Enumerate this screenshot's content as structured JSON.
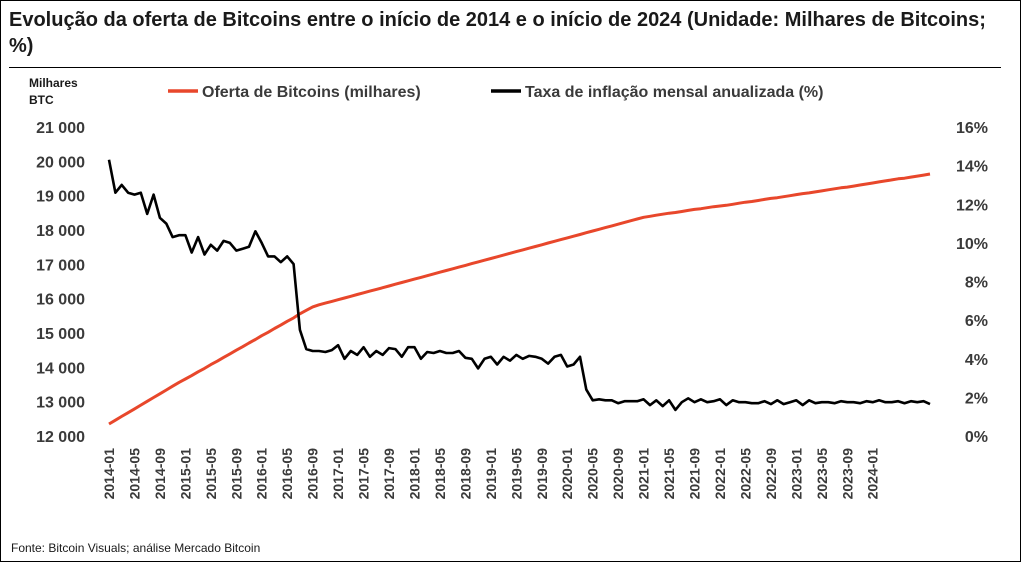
{
  "title": "Evolução da oferta de Bitcoins entre o início de 2014 e o início de 2024 (Unidade: Milhares de Bitcoins; %)",
  "source": "Fonte: Bitcoin Visuals; análise Mercado Bitcoin",
  "colors": {
    "supply": "#e8472b",
    "inflation": "#000000",
    "text": "#3a3a3a"
  },
  "chart_data": {
    "type": "line",
    "left_axis_title": [
      "Milhares",
      "BTC"
    ],
    "left_ticks": [
      "12 000",
      "13 000",
      "14 000",
      "15 000",
      "16 000",
      "17 000",
      "18 000",
      "19 000",
      "20 000",
      "21 000"
    ],
    "right_ticks": [
      "0%",
      "2%",
      "4%",
      "6%",
      "8%",
      "10%",
      "12%",
      "14%",
      "16%"
    ],
    "ylim_left": [
      12000,
      21000
    ],
    "ylim_right": [
      0,
      16
    ],
    "x_labels": [
      "2014-01",
      "2014-05",
      "2014-09",
      "2015-01",
      "2015-05",
      "2015-09",
      "2016-01",
      "2016-05",
      "2016-09",
      "2017-01",
      "2017-05",
      "2017-09",
      "2018-01",
      "2018-05",
      "2018-09",
      "2019-01",
      "2019-05",
      "2019-09",
      "2020-01",
      "2020-05",
      "2020-09",
      "2021-01",
      "2021-05",
      "2021-09",
      "2022-01",
      "2022-05",
      "2022-09",
      "2023-01",
      "2023-05",
      "2023-09",
      "2024-01"
    ],
    "legend": [
      "Oferta de Bitcoins (milhares)",
      "Taxa de inflação mensal anualizada (%)"
    ],
    "legend_position": "top",
    "grid": false,
    "series": [
      {
        "name": "Oferta de Bitcoins (milhares)",
        "axis": "left",
        "values": [
          12350,
          12460,
          12570,
          12680,
          12790,
          12900,
          13010,
          13120,
          13230,
          13340,
          13450,
          13560,
          13660,
          13760,
          13870,
          13970,
          14080,
          14180,
          14290,
          14390,
          14500,
          14600,
          14710,
          14810,
          14920,
          15020,
          15130,
          15230,
          15340,
          15440,
          15560,
          15660,
          15760,
          15820,
          15870,
          15920,
          15970,
          16020,
          16070,
          16120,
          16170,
          16220,
          16270,
          16320,
          16370,
          16420,
          16470,
          16520,
          16570,
          16620,
          16670,
          16720,
          16770,
          16820,
          16870,
          16920,
          16970,
          17020,
          17070,
          17120,
          17170,
          17220,
          17270,
          17320,
          17370,
          17420,
          17470,
          17520,
          17570,
          17620,
          17670,
          17720,
          17770,
          17820,
          17870,
          17920,
          17970,
          18020,
          18070,
          18120,
          18170,
          18220,
          18270,
          18320,
          18370,
          18400,
          18430,
          18460,
          18490,
          18510,
          18540,
          18570,
          18600,
          18620,
          18650,
          18680,
          18700,
          18720,
          18750,
          18780,
          18810,
          18830,
          18860,
          18890,
          18920,
          18940,
          18970,
          19000,
          19030,
          19060,
          19080,
          19110,
          19140,
          19170,
          19200,
          19230,
          19250,
          19280,
          19310,
          19340,
          19370,
          19400,
          19430,
          19460,
          19490,
          19510,
          19540,
          19570,
          19600,
          19630
        ]
      },
      {
        "name": "Taxa de inflação mensal anualizada (%)",
        "axis": "right",
        "values": [
          14.3,
          12.6,
          13.0,
          12.6,
          12.5,
          12.6,
          11.5,
          12.5,
          11.3,
          11.0,
          10.3,
          10.4,
          10.4,
          9.5,
          10.3,
          9.4,
          9.9,
          9.6,
          10.1,
          10.0,
          9.6,
          9.7,
          9.8,
          10.6,
          10.0,
          9.3,
          9.3,
          9.0,
          9.3,
          8.9,
          5.5,
          4.5,
          4.4,
          4.4,
          4.35,
          4.45,
          4.7,
          4.0,
          4.4,
          4.2,
          4.6,
          4.1,
          4.4,
          4.2,
          4.55,
          4.5,
          4.1,
          4.6,
          4.6,
          4.0,
          4.35,
          4.3,
          4.4,
          4.3,
          4.3,
          4.4,
          4.05,
          4.0,
          3.5,
          4.0,
          4.1,
          3.7,
          4.1,
          3.9,
          4.2,
          4.0,
          4.15,
          4.1,
          4.0,
          3.75,
          4.1,
          4.2,
          3.6,
          3.7,
          4.1,
          2.4,
          1.85,
          1.9,
          1.85,
          1.85,
          1.7,
          1.8,
          1.8,
          1.8,
          1.9,
          1.6,
          1.85,
          1.55,
          1.85,
          1.35,
          1.75,
          1.95,
          1.75,
          1.9,
          1.75,
          1.8,
          1.9,
          1.6,
          1.85,
          1.75,
          1.75,
          1.7,
          1.7,
          1.8,
          1.65,
          1.85,
          1.65,
          1.75,
          1.85,
          1.6,
          1.85,
          1.7,
          1.75,
          1.75,
          1.7,
          1.8,
          1.75,
          1.75,
          1.7,
          1.8,
          1.75,
          1.85,
          1.75,
          1.75,
          1.8,
          1.7,
          1.8,
          1.75,
          1.8,
          1.65
        ]
      }
    ]
  }
}
